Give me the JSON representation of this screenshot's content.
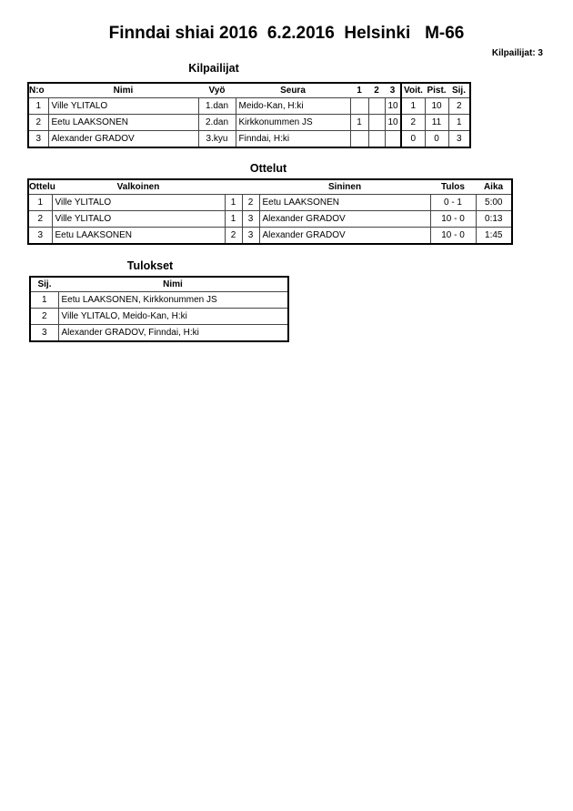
{
  "header": {
    "title": "Finndai shiai 2016  6.2.2016  Helsinki   M-66",
    "competitor_count": "Kilpailijat: 3"
  },
  "competitors": {
    "title": "Kilpailijat",
    "columns": [
      "N:o",
      "Nimi",
      "Vyö",
      "Seura",
      "1",
      "2",
      "3",
      "Voit.",
      "Pist.",
      "Sij."
    ],
    "rows": [
      [
        "1",
        "Ville YLITALO",
        "1.dan",
        "Meido-Kan, H:ki",
        "",
        "",
        "10",
        "1",
        "10",
        "2"
      ],
      [
        "2",
        "Eetu LAAKSONEN",
        "2.dan",
        "Kirkkonummen JS",
        "1",
        "",
        "10",
        "2",
        "11",
        "1"
      ],
      [
        "3",
        "Alexander GRADOV",
        "3.kyu",
        "Finndai, H:ki",
        "",
        "",
        "",
        "0",
        "0",
        "3"
      ]
    ]
  },
  "matches": {
    "title": "Ottelut",
    "columns": [
      "Ottelu",
      "Valkoinen",
      "",
      "",
      "Sininen",
      "Tulos",
      "Aika"
    ],
    "rows": [
      [
        "1",
        "Ville YLITALO",
        "1",
        "2",
        "Eetu LAAKSONEN",
        "0 - 1",
        "5:00"
      ],
      [
        "2",
        "Ville YLITALO",
        "1",
        "3",
        "Alexander GRADOV",
        "10 - 0",
        "0:13"
      ],
      [
        "3",
        "Eetu LAAKSONEN",
        "2",
        "3",
        "Alexander GRADOV",
        "10 - 0",
        "1:45"
      ]
    ]
  },
  "results": {
    "title": "Tulokset",
    "columns": [
      "Sij.",
      "Nimi"
    ],
    "rows": [
      [
        "1",
        "Eetu LAAKSONEN, Kirkkonummen JS"
      ],
      [
        "2",
        "Ville YLITALO, Meido-Kan, H:ki"
      ],
      [
        "3",
        "Alexander GRADOV, Finndai, H:ki"
      ]
    ]
  }
}
